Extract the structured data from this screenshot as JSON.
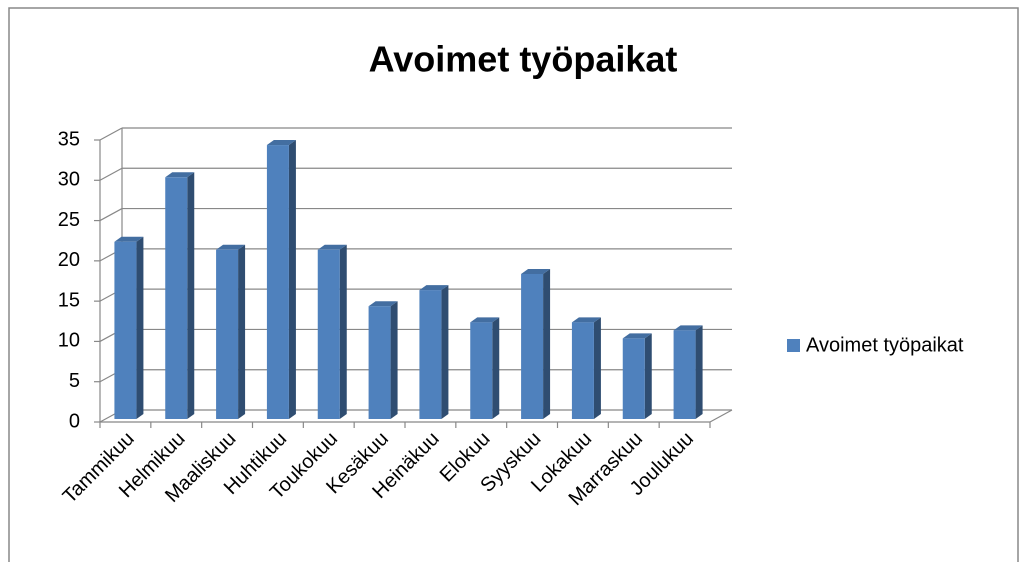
{
  "chart_data": {
    "type": "bar",
    "title": "Avoimet työpaikat",
    "categories": [
      "Tammikuu",
      "Helmikuu",
      "Maaliskuu",
      "Huhtikuu",
      "Toukokuu",
      "Kesäkuu",
      "Heinäkuu",
      "Elokuu",
      "Syyskuu",
      "Lokakuu",
      "Marraskuu",
      "Joulukuu"
    ],
    "series": [
      {
        "name": "Avoimet työpaikat",
        "color": "#4f81bd",
        "values": [
          22,
          30,
          21,
          34,
          21,
          14,
          16,
          12,
          18,
          12,
          10,
          11
        ]
      }
    ],
    "ylim": [
      0,
      35
    ],
    "yticks": [
      0,
      5,
      10,
      15,
      20,
      25,
      30,
      35
    ],
    "grid": true,
    "legend": "right"
  }
}
